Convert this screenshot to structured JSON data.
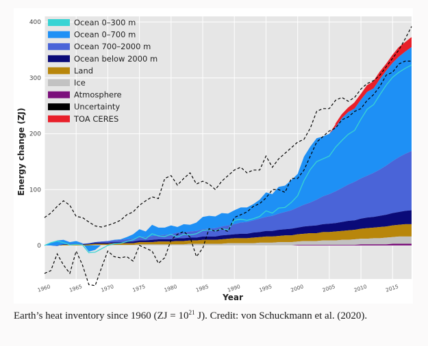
{
  "caption": {
    "text_before": "Earth’s heat inventory since 1960 (ZJ = 10",
    "superscript": "21",
    "text_after": " J). Credit: von Schuckmann et al. (2020)."
  },
  "chart_data": {
    "type": "area",
    "title": "",
    "xlabel": "Year",
    "ylabel": "Energy change (ZJ)",
    "xlim": [
      1960,
      2018
    ],
    "ylim": [
      -60,
      410
    ],
    "grid": true,
    "legend_position": "top-left",
    "x_ticks": [
      1960,
      1965,
      1970,
      1975,
      1980,
      1985,
      1990,
      1995,
      2000,
      2005,
      2010,
      2015
    ],
    "y_ticks": [
      0,
      100,
      200,
      300,
      400
    ],
    "x": [
      1960,
      1961,
      1962,
      1963,
      1964,
      1965,
      1966,
      1967,
      1968,
      1969,
      1970,
      1971,
      1972,
      1973,
      1974,
      1975,
      1976,
      1977,
      1978,
      1979,
      1980,
      1981,
      1982,
      1983,
      1984,
      1985,
      1986,
      1987,
      1988,
      1989,
      1990,
      1991,
      1992,
      1993,
      1994,
      1995,
      1996,
      1997,
      1998,
      1999,
      2000,
      2001,
      2002,
      2003,
      2004,
      2005,
      2006,
      2007,
      2008,
      2009,
      2010,
      2011,
      2012,
      2013,
      2014,
      2015,
      2016,
      2017,
      2018
    ],
    "stacked_series": [
      {
        "name": "Atmosphere",
        "color": "#7b0f7b",
        "values": [
          0,
          0,
          0,
          0,
          0,
          0,
          0,
          0,
          0,
          0,
          0,
          0,
          0,
          0,
          0,
          0,
          0,
          0,
          0,
          0,
          0,
          0,
          0,
          0,
          0,
          0,
          0,
          0,
          0,
          0,
          0,
          0,
          0,
          0,
          0,
          0,
          0,
          0,
          0,
          0,
          1,
          1,
          1,
          1,
          1,
          1,
          1,
          1,
          1,
          1,
          2,
          2,
          2,
          2,
          2,
          3,
          3,
          3,
          3
        ]
      },
      {
        "name": "Ice",
        "color": "#c2c2c2",
        "values": [
          0,
          0,
          0,
          0,
          0,
          0,
          0,
          0,
          1,
          1,
          1,
          1,
          1,
          1,
          1,
          2,
          2,
          2,
          2,
          2,
          2,
          2,
          2,
          3,
          3,
          3,
          3,
          3,
          3,
          4,
          4,
          4,
          4,
          4,
          5,
          5,
          5,
          6,
          6,
          6,
          6,
          7,
          7,
          7,
          8,
          8,
          8,
          9,
          9,
          10,
          10,
          10,
          11,
          11,
          12,
          12,
          13,
          13,
          13
        ]
      },
      {
        "name": "Land",
        "color": "#b8860b",
        "values": [
          0,
          0,
          0,
          1,
          1,
          1,
          1,
          2,
          2,
          2,
          2,
          3,
          3,
          3,
          3,
          4,
          4,
          4,
          5,
          5,
          5,
          6,
          6,
          6,
          6,
          7,
          7,
          7,
          8,
          8,
          9,
          9,
          9,
          10,
          10,
          11,
          11,
          11,
          12,
          12,
          13,
          13,
          14,
          14,
          15,
          15,
          16,
          16,
          17,
          17,
          18,
          19,
          19,
          20,
          20,
          21,
          21,
          22,
          22
        ]
      },
      {
        "name": "Ocean below 2000 m",
        "color": "#0a0a78",
        "values": [
          0,
          0,
          0,
          1,
          1,
          1,
          1,
          1,
          2,
          2,
          2,
          2,
          2,
          3,
          3,
          3,
          3,
          4,
          4,
          4,
          4,
          5,
          5,
          5,
          5,
          6,
          6,
          6,
          7,
          7,
          7,
          8,
          8,
          9,
          9,
          10,
          10,
          11,
          11,
          12,
          12,
          13,
          13,
          14,
          14,
          15,
          15,
          16,
          17,
          17,
          18,
          19,
          19,
          20,
          21,
          22,
          23,
          24,
          25
        ]
      },
      {
        "name": "Ocean 700–2000 m",
        "color": "#4a64d8",
        "values": [
          0,
          0,
          -1,
          0,
          1,
          1,
          1,
          1,
          1,
          2,
          3,
          3,
          4,
          4,
          5,
          6,
          6,
          7,
          7,
          8,
          9,
          10,
          10,
          11,
          12,
          13,
          14,
          15,
          16,
          17,
          18,
          20,
          21,
          22,
          24,
          25,
          27,
          29,
          31,
          33,
          36,
          39,
          42,
          46,
          50,
          53,
          57,
          61,
          65,
          69,
          72,
          75,
          79,
          83,
          88,
          93,
          98,
          102,
          106
        ]
      },
      {
        "name": "Ocean 0–700 m",
        "color": "#1e90f5",
        "values": [
          0,
          5,
          10,
          8,
          3,
          5,
          1,
          -15,
          -14,
          -6,
          0,
          1,
          1,
          4,
          8,
          14,
          10,
          20,
          14,
          13,
          16,
          10,
          15,
          12,
          15,
          22,
          23,
          21,
          24,
          21,
          25,
          27,
          26,
          29,
          34,
          44,
          39,
          48,
          47,
          54,
          60,
          86,
          100,
          110,
          107,
          108,
          115,
          125,
          130,
          131,
          141,
          150,
          151,
          162,
          170,
          176,
          180,
          183,
          186
        ]
      },
      {
        "name": "TOA CERES",
        "color": "#e8202a",
        "values": [
          0,
          0,
          0,
          0,
          0,
          0,
          0,
          0,
          0,
          0,
          0,
          0,
          0,
          0,
          0,
          0,
          0,
          0,
          0,
          0,
          0,
          0,
          0,
          0,
          0,
          0,
          0,
          0,
          0,
          0,
          0,
          0,
          0,
          0,
          0,
          0,
          0,
          0,
          0,
          0,
          0,
          0,
          0,
          0,
          0,
          0,
          5,
          6,
          7,
          10,
          9,
          11,
          12,
          12,
          11,
          13,
          16,
          16,
          17
        ]
      }
    ],
    "ocean_0_300_line": {
      "name": "Ocean 0–300 m",
      "color": "#38d4d4",
      "values": [
        0,
        5,
        8,
        5,
        1,
        2,
        1,
        -13,
        -12,
        -6,
        0,
        3,
        4,
        7,
        10,
        16,
        12,
        21,
        17,
        16,
        20,
        15,
        20,
        19,
        21,
        27,
        28,
        26,
        30,
        28,
        45,
        47,
        45,
        48,
        52,
        62,
        58,
        67,
        68,
        77,
        89,
        116,
        136,
        150,
        155,
        160,
        176,
        188,
        199,
        206,
        226,
        244,
        252,
        270,
        287,
        301,
        310,
        317,
        323
      ]
    },
    "uncertainty_upper": [
      50,
      58,
      70,
      80,
      72,
      52,
      50,
      42,
      35,
      33,
      36,
      40,
      45,
      55,
      60,
      72,
      80,
      87,
      84,
      120,
      125,
      108,
      120,
      130,
      110,
      115,
      110,
      100,
      115,
      125,
      135,
      140,
      130,
      135,
      135,
      160,
      140,
      155,
      165,
      175,
      185,
      190,
      210,
      240,
      245,
      245,
      260,
      265,
      258,
      265,
      280,
      290,
      295,
      305,
      320,
      335,
      350,
      370,
      392
    ],
    "uncertainty_lower": [
      -50,
      -45,
      -15,
      -35,
      -50,
      -10,
      -35,
      -70,
      -72,
      -40,
      -10,
      -20,
      -22,
      -20,
      -28,
      0,
      -5,
      -10,
      -32,
      -22,
      10,
      20,
      25,
      15,
      -20,
      -5,
      30,
      25,
      30,
      25,
      50,
      55,
      60,
      70,
      75,
      85,
      100,
      100,
      95,
      120,
      120,
      135,
      160,
      185,
      195,
      205,
      210,
      225,
      230,
      240,
      245,
      260,
      270,
      285,
      305,
      310,
      325,
      330,
      330
    ],
    "legend": [
      {
        "label": "Ocean 0–300 m",
        "color": "#38d4d4"
      },
      {
        "label": "Ocean 0–700 m",
        "color": "#1e90f5"
      },
      {
        "label": "Ocean 700–2000 m",
        "color": "#4a64d8"
      },
      {
        "label": "Ocean below 2000 m",
        "color": "#0a0a78"
      },
      {
        "label": "Land",
        "color": "#b8860b"
      },
      {
        "label": "Ice",
        "color": "#c2c2c2"
      },
      {
        "label": "Atmosphere",
        "color": "#7b0f7b"
      },
      {
        "label": "Uncertainty",
        "color": "#000000"
      },
      {
        "label": "TOA CERES",
        "color": "#e8202a"
      }
    ]
  }
}
